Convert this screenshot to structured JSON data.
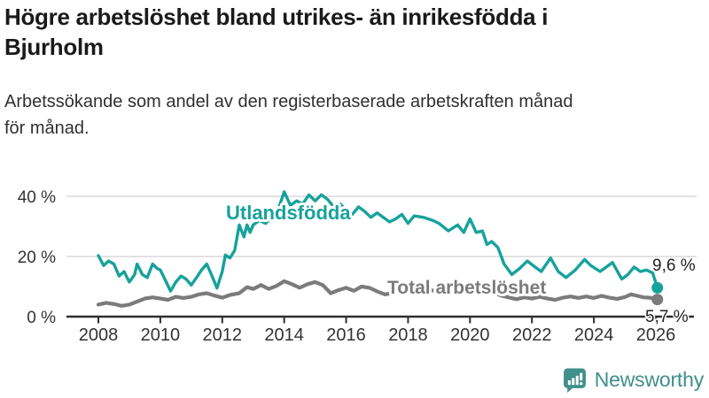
{
  "header": {
    "title": "Högre arbetslöshet bland utrikes- än inrikesfödda i\nBjurholm",
    "subtitle": "Arbetssökande som andel av den registerbaserade arbetskraften månad\nför månad."
  },
  "colors": {
    "axis": "#2e2e2e",
    "grid": "#d9d9d9",
    "tick_text": "#333333",
    "end_label_text": "#222222",
    "title_text": "#1a1a1a"
  },
  "chart_data": {
    "type": "line",
    "unit": "%",
    "x_axis": {
      "ticks": [
        "2008",
        "2010",
        "2012",
        "2014",
        "2016",
        "2018",
        "2020",
        "2022",
        "2024",
        "2026"
      ]
    },
    "y_axis": {
      "ticks": [
        {
          "value": 0,
          "label": "0 %"
        },
        {
          "value": 20,
          "label": "20 %"
        },
        {
          "value": 40,
          "label": "40 %"
        }
      ]
    },
    "xlim": [
      2008,
      2026.2
    ],
    "ylim": [
      0,
      44
    ],
    "grid": "horizontal-only",
    "legend": "inline-labels",
    "series": [
      {
        "name": "Utlandsfödda",
        "color": "#17a29b",
        "end_label": "9,6 %",
        "end_value": 9.6,
        "points": [
          [
            2008.0,
            20.3
          ],
          [
            2008.17,
            17
          ],
          [
            2008.33,
            18.5
          ],
          [
            2008.5,
            17.5
          ],
          [
            2008.67,
            13.5
          ],
          [
            2008.83,
            15
          ],
          [
            2009.0,
            11.5
          ],
          [
            2009.17,
            14
          ],
          [
            2009.25,
            17.5
          ],
          [
            2009.42,
            14
          ],
          [
            2009.58,
            13
          ],
          [
            2009.75,
            17.5
          ],
          [
            2009.9,
            16
          ],
          [
            2010.0,
            15.5
          ],
          [
            2010.17,
            12
          ],
          [
            2010.33,
            8.5
          ],
          [
            2010.5,
            11.5
          ],
          [
            2010.67,
            13.5
          ],
          [
            2010.83,
            12.5
          ],
          [
            2011.0,
            10.5
          ],
          [
            2011.17,
            13
          ],
          [
            2011.33,
            15.5
          ],
          [
            2011.5,
            17.5
          ],
          [
            2011.67,
            13.5
          ],
          [
            2011.83,
            9.5
          ],
          [
            2012.0,
            15
          ],
          [
            2012.1,
            20.5
          ],
          [
            2012.25,
            19.5
          ],
          [
            2012.4,
            22
          ],
          [
            2012.55,
            30.5
          ],
          [
            2012.7,
            26.5
          ],
          [
            2012.8,
            30.5
          ],
          [
            2012.9,
            28
          ],
          [
            2013.0,
            30.5
          ],
          [
            2013.2,
            32
          ],
          [
            2013.4,
            31
          ],
          [
            2013.6,
            33
          ],
          [
            2013.8,
            35.5
          ],
          [
            2014.0,
            41.5
          ],
          [
            2014.2,
            37
          ],
          [
            2014.4,
            38.5
          ],
          [
            2014.6,
            37.5
          ],
          [
            2014.8,
            40.5
          ],
          [
            2015.0,
            38.5
          ],
          [
            2015.2,
            40.5
          ],
          [
            2015.4,
            39
          ],
          [
            2015.6,
            36.5
          ],
          [
            2015.8,
            37.5
          ],
          [
            2016.0,
            35.5
          ],
          [
            2016.2,
            34
          ],
          [
            2016.4,
            36.5
          ],
          [
            2016.6,
            35
          ],
          [
            2016.8,
            33
          ],
          [
            2017.0,
            34.5
          ],
          [
            2017.2,
            33
          ],
          [
            2017.4,
            31.5
          ],
          [
            2017.6,
            32.5
          ],
          [
            2017.8,
            34
          ],
          [
            2018.0,
            31
          ],
          [
            2018.2,
            33.5
          ],
          [
            2018.5,
            33
          ],
          [
            2018.8,
            32
          ],
          [
            2019.0,
            31
          ],
          [
            2019.3,
            28.5
          ],
          [
            2019.6,
            30.5
          ],
          [
            2019.8,
            28
          ],
          [
            2020.0,
            32.5
          ],
          [
            2020.2,
            28
          ],
          [
            2020.4,
            28.5
          ],
          [
            2020.55,
            24
          ],
          [
            2020.7,
            25
          ],
          [
            2020.9,
            23
          ],
          [
            2021.1,
            17.5
          ],
          [
            2021.35,
            14
          ],
          [
            2021.6,
            16
          ],
          [
            2021.85,
            18.5
          ],
          [
            2022.1,
            16.5
          ],
          [
            2022.3,
            15
          ],
          [
            2022.6,
            19.5
          ],
          [
            2022.85,
            15
          ],
          [
            2023.1,
            13
          ],
          [
            2023.4,
            15.5
          ],
          [
            2023.7,
            19
          ],
          [
            2023.9,
            17
          ],
          [
            2024.2,
            15
          ],
          [
            2024.6,
            18
          ],
          [
            2024.9,
            12.5
          ],
          [
            2025.1,
            14
          ],
          [
            2025.3,
            16.5
          ],
          [
            2025.5,
            15
          ],
          [
            2025.7,
            15.5
          ],
          [
            2025.9,
            14.5
          ],
          [
            2026.05,
            9.6
          ]
        ]
      },
      {
        "name": "Total arbetslöshet",
        "color": "#7b7b7b",
        "end_label": "5,7 %",
        "end_value": 5.7,
        "points": [
          [
            2008.0,
            4
          ],
          [
            2008.25,
            4.6
          ],
          [
            2008.5,
            4.2
          ],
          [
            2008.75,
            3.6
          ],
          [
            2009.0,
            4
          ],
          [
            2009.25,
            5
          ],
          [
            2009.5,
            6
          ],
          [
            2009.75,
            6.4
          ],
          [
            2010.0,
            6
          ],
          [
            2010.25,
            5.6
          ],
          [
            2010.5,
            6.6
          ],
          [
            2010.75,
            6.2
          ],
          [
            2011.0,
            6.6
          ],
          [
            2011.25,
            7.4
          ],
          [
            2011.5,
            7.8
          ],
          [
            2011.75,
            7
          ],
          [
            2012.0,
            6.3
          ],
          [
            2012.25,
            7.2
          ],
          [
            2012.55,
            7.8
          ],
          [
            2012.8,
            9.8
          ],
          [
            2013.0,
            9.2
          ],
          [
            2013.25,
            10.5
          ],
          [
            2013.5,
            9.2
          ],
          [
            2013.75,
            10.2
          ],
          [
            2014.0,
            11.8
          ],
          [
            2014.25,
            10.8
          ],
          [
            2014.5,
            9.6
          ],
          [
            2014.75,
            10.8
          ],
          [
            2015.0,
            11.5
          ],
          [
            2015.25,
            10.5
          ],
          [
            2015.5,
            7.8
          ],
          [
            2015.75,
            8.8
          ],
          [
            2016.0,
            9.6
          ],
          [
            2016.25,
            8.6
          ],
          [
            2016.5,
            10
          ],
          [
            2016.75,
            9.6
          ],
          [
            2017.0,
            8.4
          ],
          [
            2017.25,
            7.4
          ],
          [
            2017.5,
            7.8
          ],
          [
            2017.75,
            8.4
          ],
          [
            2018.0,
            8.2
          ],
          [
            2018.5,
            8.6
          ],
          [
            2019.0,
            8.8
          ],
          [
            2019.5,
            8.4
          ],
          [
            2020.0,
            8.8
          ],
          [
            2020.5,
            9
          ],
          [
            2021.0,
            7
          ],
          [
            2021.5,
            5.8
          ],
          [
            2021.75,
            6.4
          ],
          [
            2022.0,
            6
          ],
          [
            2022.25,
            6.6
          ],
          [
            2022.5,
            6
          ],
          [
            2022.75,
            5.6
          ],
          [
            2023.0,
            6.3
          ],
          [
            2023.25,
            6.7
          ],
          [
            2023.5,
            6.2
          ],
          [
            2023.75,
            6.7
          ],
          [
            2024.0,
            6.2
          ],
          [
            2024.25,
            6.9
          ],
          [
            2024.5,
            6.3
          ],
          [
            2024.75,
            5.9
          ],
          [
            2025.0,
            6.5
          ],
          [
            2025.2,
            7.4
          ],
          [
            2025.4,
            6.9
          ],
          [
            2025.6,
            6.4
          ],
          [
            2025.8,
            6.3
          ],
          [
            2026.05,
            5.7
          ]
        ]
      }
    ]
  },
  "footer": {
    "brand": "Newsworthy",
    "brand_color": "#3f8f8b",
    "logo_icon": "bar-chart-speech-bubble-icon"
  }
}
